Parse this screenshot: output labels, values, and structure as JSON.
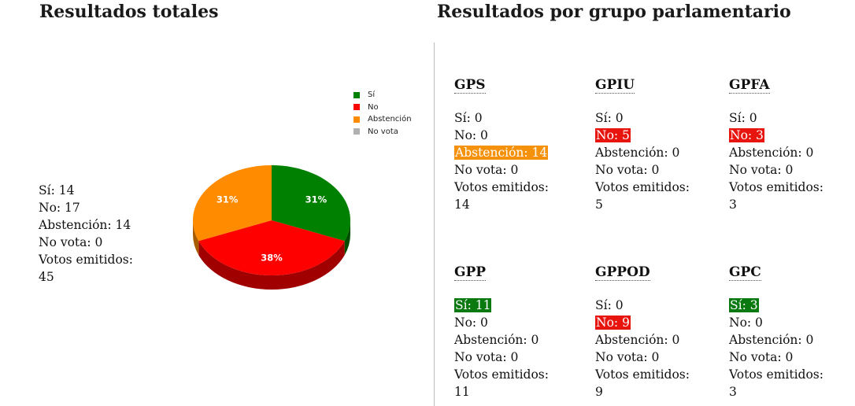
{
  "titles": {
    "left": "Resultados totales",
    "right": "Resultados por grupo parlamentario"
  },
  "colors": {
    "si": "#008000",
    "no": "#ff0000",
    "abstencion": "#ff8c00",
    "novota": "#b0b0b0"
  },
  "totals": {
    "si": "Sí: 14",
    "no": "No: 17",
    "abstencion": "Abstención: 14",
    "novota": "No vota: 0",
    "votos_label": "Votos emitidos:",
    "votos_value": "45"
  },
  "chart_data": {
    "type": "pie",
    "title": "",
    "categories": [
      "Sí",
      "No",
      "Abstención",
      "No vota"
    ],
    "values": [
      14,
      17,
      14,
      0
    ],
    "data_labels": [
      "31%",
      "38%",
      "31%",
      ""
    ],
    "legend_position": "top-right"
  },
  "groups": [
    {
      "name": "GPS",
      "si": "Sí: 0",
      "no": "No: 0",
      "abstencion": "Abstención: 14",
      "novota": "No vota: 0",
      "votos_label": "Votos emitidos:",
      "votos_value": "14",
      "highlight": "abstencion"
    },
    {
      "name": "GPIU",
      "si": "Sí: 0",
      "no": "No: 5",
      "abstencion": "Abstención: 0",
      "novota": "No vota: 0",
      "votos_label": "Votos emitidos:",
      "votos_value": "5",
      "highlight": "no"
    },
    {
      "name": "GPFA",
      "si": "Sí: 0",
      "no": "No: 3",
      "abstencion": "Abstención: 0",
      "novota": "No vota: 0",
      "votos_label": "Votos emitidos:",
      "votos_value": "3",
      "highlight": "no"
    },
    {
      "name": "GPP",
      "si": "Sí: 11",
      "no": "No: 0",
      "abstencion": "Abstención: 0",
      "novota": "No vota: 0",
      "votos_label": "Votos emitidos:",
      "votos_value": "11",
      "highlight": "si"
    },
    {
      "name": "GPPOD",
      "si": "Sí: 0",
      "no": "No: 9",
      "abstencion": "Abstención: 0",
      "novota": "No vota: 0",
      "votos_label": "Votos emitidos:",
      "votos_value": "9",
      "highlight": "no"
    },
    {
      "name": "GPC",
      "si": "Sí: 3",
      "no": "No: 0",
      "abstencion": "Abstención: 0",
      "novota": "No vota: 0",
      "votos_label": "Votos emitidos:",
      "votos_value": "3",
      "highlight": "si"
    }
  ]
}
